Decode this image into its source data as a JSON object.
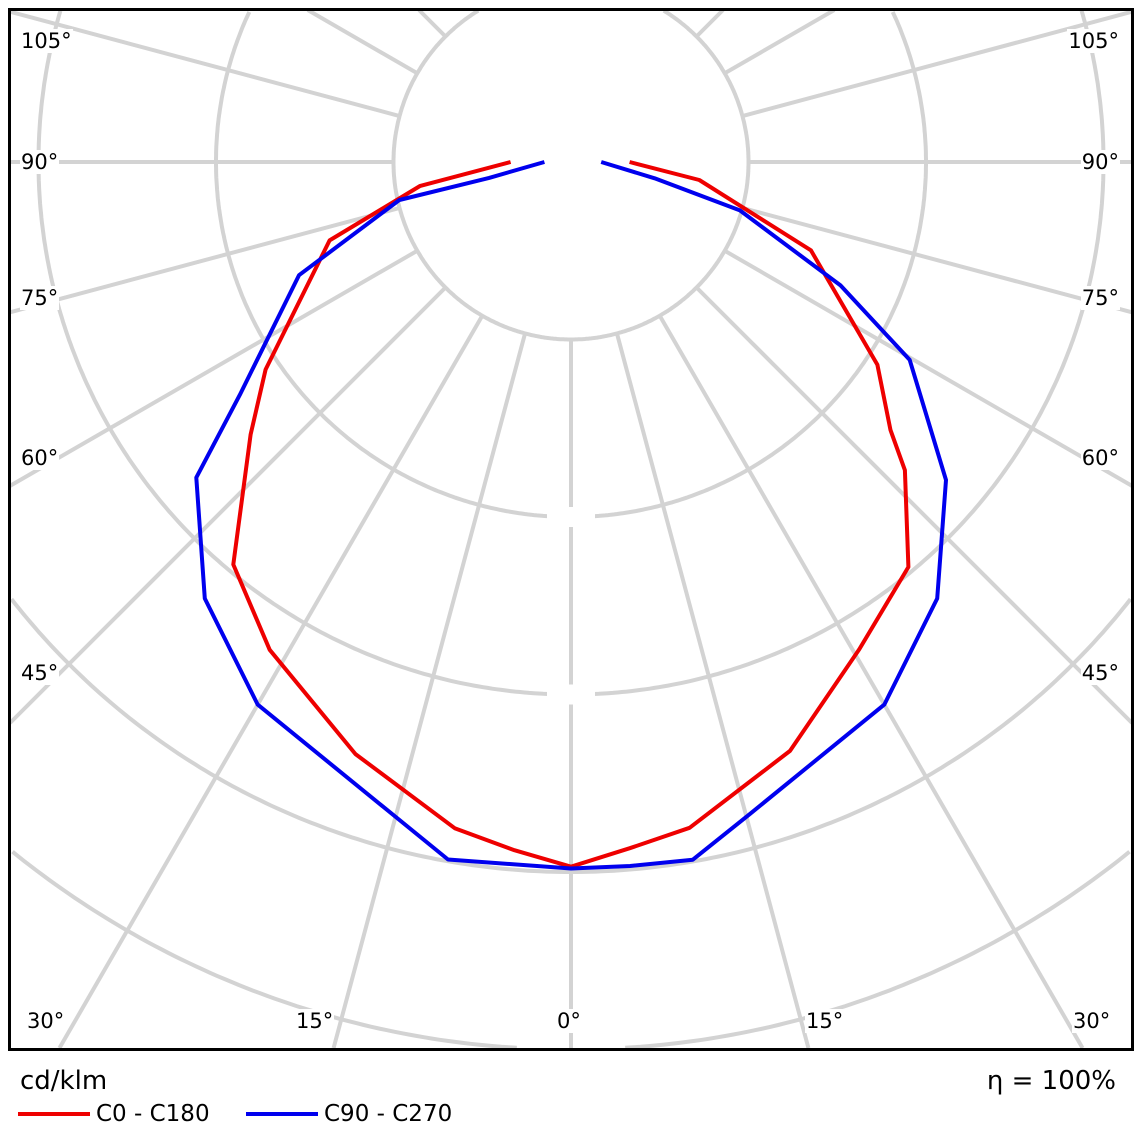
{
  "chart_data": {
    "type": "polar-line",
    "title": "",
    "unit_label": "cd/klm",
    "efficiency_label": "η = 100%",
    "angle_labels_left": [
      "105°",
      "90°",
      "75°",
      "60°",
      "45°"
    ],
    "angle_labels_right": [
      "105°",
      "90°",
      "75°",
      "60°",
      "45°"
    ],
    "angle_labels_bottom": [
      "30°",
      "15°",
      "0°",
      "15°",
      "30°"
    ],
    "grid": true,
    "rings": 5,
    "angle_step_deg": 15,
    "zero_direction": "down",
    "series": [
      {
        "name": "C0 - C180",
        "color": "#ee0000",
        "points": [
          [
            -90,
            0.34
          ],
          [
            -81,
            0.86
          ],
          [
            -72,
            1.43
          ],
          [
            -55.8,
            2.08
          ],
          [
            -49.6,
            2.37
          ],
          [
            -40,
            2.96
          ],
          [
            -31.7,
            3.23
          ],
          [
            -20,
            3.55
          ],
          [
            -9.9,
            3.81
          ],
          [
            -4.7,
            3.89
          ],
          [
            0,
            3.97
          ],
          [
            4.9,
            3.88
          ],
          [
            10.1,
            3.81
          ],
          [
            20.4,
            3.54
          ],
          [
            30.6,
            3.19
          ],
          [
            39.8,
            2.97
          ],
          [
            47.3,
            2.56
          ],
          [
            50,
            2.35
          ],
          [
            56.5,
            2.07
          ],
          [
            69.8,
            1.44
          ],
          [
            82,
            0.73
          ],
          [
            90,
            0.33
          ]
        ]
      },
      {
        "name": "C90 - C270",
        "color": "#0000ee",
        "points": [
          [
            -90,
            0.15
          ],
          [
            -79,
            0.47
          ],
          [
            -77.5,
            0.99
          ],
          [
            -67.4,
            1.66
          ],
          [
            -54.9,
            2.28
          ],
          [
            -49.9,
            2.76
          ],
          [
            -40,
            3.21
          ],
          [
            -30,
            3.53
          ],
          [
            -10,
            3.99
          ],
          [
            0,
            3.98
          ],
          [
            4.8,
            3.98
          ],
          [
            9.9,
            3.99
          ],
          [
            15.3,
            3.81
          ],
          [
            30,
            3.53
          ],
          [
            40,
            3.21
          ],
          [
            49.7,
            2.77
          ],
          [
            59.7,
            2.21
          ],
          [
            65.4,
            1.67
          ],
          [
            74,
            0.99
          ],
          [
            79,
            0.48
          ],
          [
            90,
            0.17
          ]
        ]
      }
    ]
  }
}
